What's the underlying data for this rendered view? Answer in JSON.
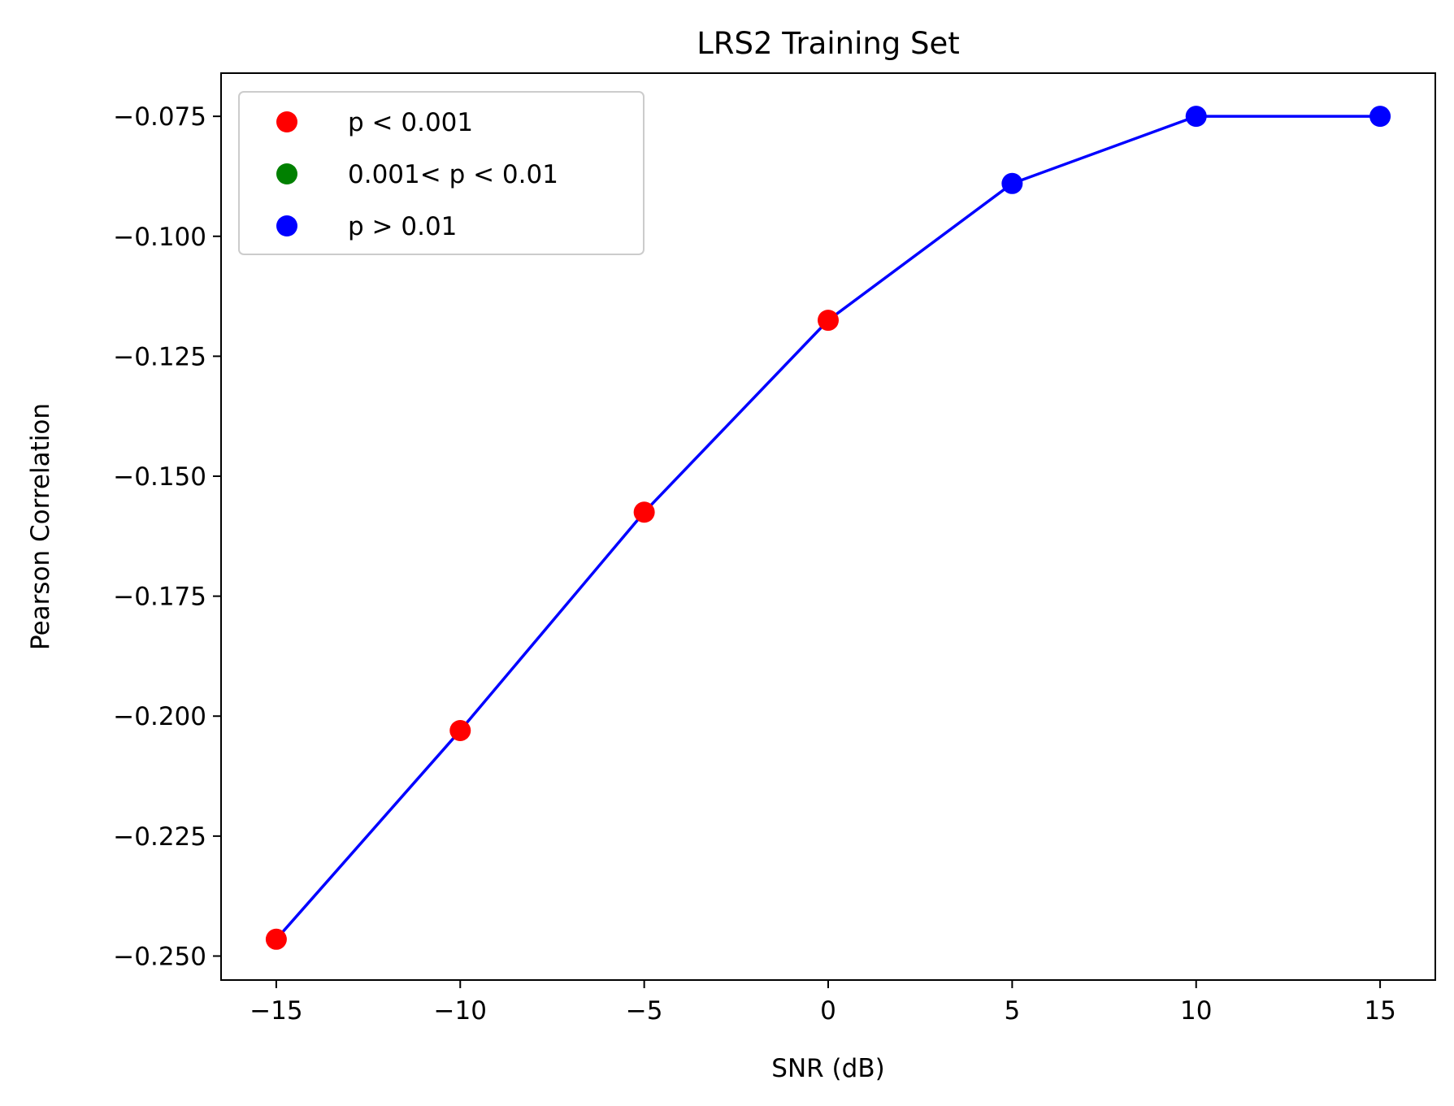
{
  "chart_data": {
    "type": "line",
    "title": "LRS2 Training Set",
    "xlabel": "SNR (dB)",
    "ylabel": "Pearson Correlation",
    "xlim": [
      -16.5,
      16.5
    ],
    "ylim": [
      -0.255,
      -0.066
    ],
    "x_ticks": [
      -15,
      -10,
      -5,
      0,
      5,
      10,
      15
    ],
    "x_tick_labels": [
      "−15",
      "−10",
      "−5",
      "0",
      "5",
      "10",
      "15"
    ],
    "y_ticks": [
      -0.25,
      -0.225,
      -0.2,
      -0.175,
      -0.15,
      -0.125,
      -0.1,
      -0.075
    ],
    "y_tick_labels": [
      "−0.250",
      "−0.225",
      "−0.200",
      "−0.175",
      "−0.150",
      "−0.125",
      "−0.100",
      "−0.075"
    ],
    "grid": false,
    "legend_position": "top-left",
    "line_color": "#0000ff",
    "series": [
      {
        "x": [
          -15,
          -10,
          -5,
          0,
          5,
          10,
          15
        ],
        "y": [
          -0.2465,
          -0.203,
          -0.1575,
          -0.1175,
          -0.089,
          -0.075,
          -0.075
        ],
        "significance": [
          "p<0.001",
          "p<0.001",
          "p<0.001",
          "p<0.001",
          "p>0.01",
          "p>0.01",
          "p>0.01"
        ]
      }
    ],
    "legend": [
      {
        "label": "p < 0.001",
        "key": "p<0.001",
        "color": "#ff0000"
      },
      {
        "label": "0.001< p < 0.01",
        "key": "0.001<p<0.01",
        "color": "#008000"
      },
      {
        "label": "p > 0.01",
        "key": "p>0.01",
        "color": "#0000ff"
      }
    ]
  }
}
